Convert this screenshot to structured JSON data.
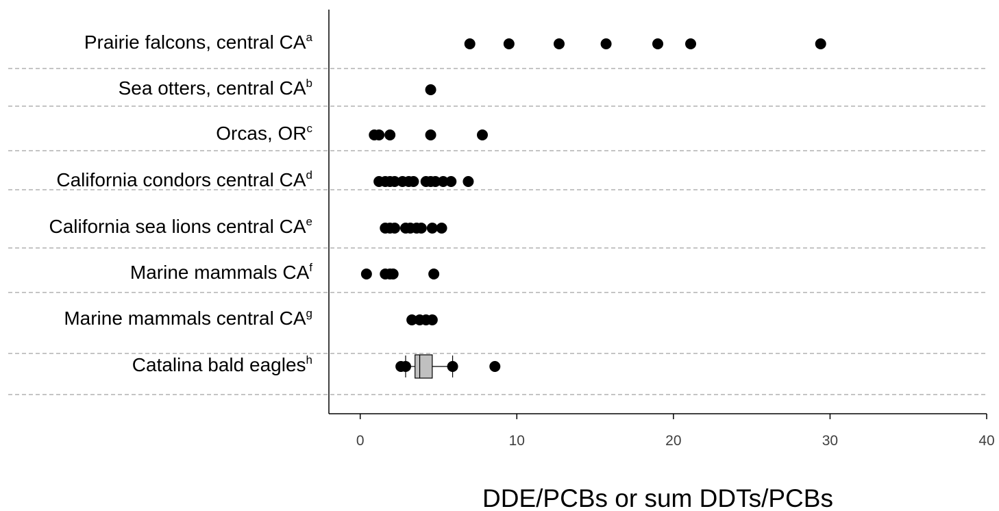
{
  "chart_data": {
    "type": "scatter",
    "title": "",
    "xlabel": "DDE/PCBs or sum DDTs/PCBs",
    "ylabel": "",
    "xlim": [
      -2,
      40
    ],
    "xticks": [
      0,
      10,
      20,
      30,
      40
    ],
    "grid": "horizontal dashed separators between categories",
    "legend": "none",
    "categories": [
      {
        "label": "Prairie falcons, central CA",
        "sup": "a",
        "values": [
          7.0,
          9.5,
          12.7,
          15.7,
          19.0,
          21.1,
          29.4
        ]
      },
      {
        "label": "Sea otters, central CA",
        "sup": "b",
        "values": [
          4.5
        ]
      },
      {
        "label": "Orcas, OR",
        "sup": "c",
        "values": [
          0.9,
          1.2,
          1.9,
          4.5,
          7.8
        ]
      },
      {
        "label": "California condors central CA",
        "sup": "d",
        "values": [
          1.2,
          1.6,
          1.9,
          2.2,
          2.7,
          3.1,
          3.4,
          4.2,
          4.5,
          4.8,
          5.3,
          5.8,
          6.9
        ]
      },
      {
        "label": "California sea lions central CA",
        "sup": "e",
        "values": [
          1.6,
          1.9,
          2.2,
          2.9,
          3.2,
          3.6,
          3.9,
          4.6,
          5.2
        ]
      },
      {
        "label": "Marine mammals  CA",
        "sup": "f",
        "values": [
          0.4,
          1.6,
          1.9,
          2.1,
          4.7
        ]
      },
      {
        "label": "Marine mammals  central CA",
        "sup": "g",
        "values": [
          3.3,
          3.8,
          4.2,
          4.6
        ]
      },
      {
        "label": "Catalina bald eagles",
        "sup": "h",
        "values": [
          2.6,
          2.9,
          5.9,
          8.6
        ],
        "box": {
          "whisker_low": 2.9,
          "q1": 3.5,
          "median": 3.8,
          "q3": 4.6,
          "whisker_high": 5.9
        }
      }
    ],
    "colors": {
      "points": "#000000",
      "box_fill": "#c0c0c0",
      "separator": "#a0a0a0",
      "axis": "#000000"
    }
  }
}
